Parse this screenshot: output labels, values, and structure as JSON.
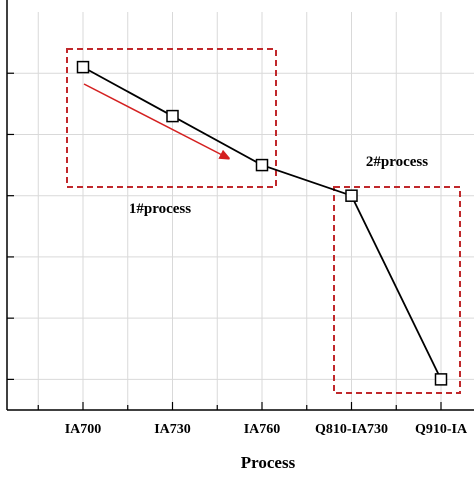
{
  "chart_data": {
    "type": "line",
    "xlabel": "Process",
    "ylabel": "",
    "categories": [
      "IA700",
      "IA730",
      "IA760",
      "Q810-IA730",
      "Q910-IA"
    ],
    "values": [
      6.3,
      5.5,
      4.7,
      4.2,
      1.2
    ],
    "ylim": [
      0.7,
      7.2
    ],
    "yticks": [
      1.2,
      2.2,
      3.2,
      4.2,
      5.2,
      6.2
    ],
    "grid": true,
    "marker": "square",
    "annotations": [
      {
        "label": "1#process",
        "group": [
          "IA700",
          "IA730",
          "IA760"
        ]
      },
      {
        "label": "2#process",
        "group": [
          "Q810-IA730",
          "Q910-IA"
        ]
      }
    ],
    "colors": {
      "line": "#000000",
      "box": "#c0282b",
      "arrow": "#d42020",
      "grid": "#d9d9d9"
    }
  }
}
